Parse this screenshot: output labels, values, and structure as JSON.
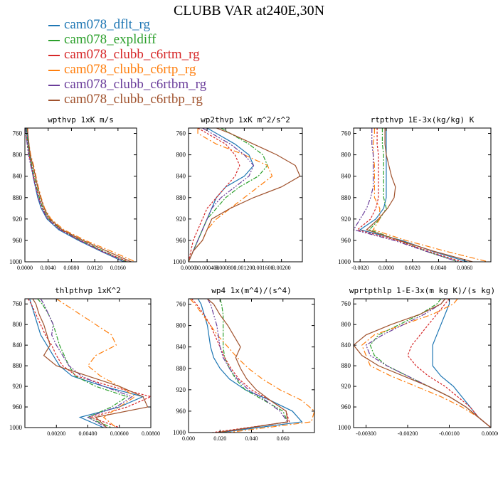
{
  "title": "CLUBB VAR at240E,30N",
  "legend": [
    {
      "label": "cam078_dflt_rg",
      "color": "#1f77b4"
    },
    {
      "label": "cam078_expldiff",
      "color": "#2ca02c"
    },
    {
      "label": "cam078_clubb_c6rtm_rg",
      "color": "#d62728"
    },
    {
      "label": "cam078_clubb_c6rtp_rg",
      "color": "#ff7f0e"
    },
    {
      "label": "cam078_clubb_c6rtbm_rg",
      "color": "#6a3d9a"
    },
    {
      "label": "cam078_clubb_c6rtbp_rg",
      "color": "#a0522d"
    }
  ],
  "chart_data": [
    {
      "type": "line",
      "title": "wpthvp  1xK m/s",
      "xlim": [
        0,
        0.0192
      ],
      "ylim": [
        1000,
        750
      ],
      "yticks": [
        760,
        800,
        840,
        880,
        920,
        960,
        1000
      ],
      "xticks": [
        0.0,
        0.004,
        0.008,
        0.012,
        0.016
      ],
      "xticklabels": [
        "0.0000",
        "0.0040",
        "0.0080",
        "0.0120",
        "0.0160"
      ],
      "y": [
        750,
        760,
        780,
        800,
        820,
        840,
        860,
        880,
        900,
        920,
        940,
        960,
        980,
        1000
      ],
      "series": [
        {
          "name": "cam078_dflt_rg",
          "x": [
            0.0003,
            0.0004,
            0.0006,
            0.0008,
            0.0011,
            0.0014,
            0.0018,
            0.0022,
            0.0028,
            0.0038,
            0.0058,
            0.0092,
            0.013,
            0.017
          ]
        },
        {
          "name": "cam078_expldiff",
          "x": [
            0.0002,
            0.0003,
            0.0005,
            0.0008,
            0.0012,
            0.0016,
            0.002,
            0.0025,
            0.0031,
            0.0041,
            0.0062,
            0.0096,
            0.0135,
            0.0175
          ]
        },
        {
          "name": "cam078_clubb_c6rtm_rg",
          "x": [
            0.0001,
            0.0002,
            0.0004,
            0.0007,
            0.0011,
            0.0015,
            0.0019,
            0.0024,
            0.003,
            0.004,
            0.0061,
            0.0095,
            0.0133,
            0.0178
          ]
        },
        {
          "name": "cam078_clubb_c6rtp_rg",
          "x": [
            0.0005,
            0.0005,
            0.0007,
            0.001,
            0.0015,
            0.0019,
            0.0023,
            0.0028,
            0.0034,
            0.0045,
            0.0067,
            0.0104,
            0.0148,
            0.019
          ]
        },
        {
          "name": "cam078_clubb_c6rtbm_rg",
          "x": [
            0.0001,
            0.0002,
            0.0004,
            0.0006,
            0.001,
            0.0014,
            0.0018,
            0.0023,
            0.0029,
            0.0039,
            0.006,
            0.0094,
            0.0131,
            0.0172
          ]
        },
        {
          "name": "cam078_clubb_c6rtbp_rg",
          "x": [
            0.0004,
            0.0005,
            0.0007,
            0.0009,
            0.0014,
            0.0018,
            0.0022,
            0.0027,
            0.0033,
            0.0043,
            0.0064,
            0.01,
            0.0141,
            0.0183
          ]
        }
      ]
    },
    {
      "type": "line",
      "title": "wp2thvp  1xK m^2/s^2",
      "xlim": [
        0,
        0.00245
      ],
      "ylim": [
        1000,
        750
      ],
      "yticks": [
        760,
        800,
        840,
        880,
        920,
        960,
        1000
      ],
      "xticks": [
        0.0,
        0.0004,
        0.0008,
        0.0012,
        0.0016,
        0.002
      ],
      "xticklabels": [
        "0.0000",
        "00.000400",
        "0.000800",
        "0.001200",
        "0.001600",
        "0.00200"
      ],
      "y": [
        750,
        760,
        780,
        800,
        820,
        840,
        860,
        880,
        900,
        920,
        940,
        960,
        980,
        1000
      ],
      "series": [
        {
          "name": "cam078_dflt_rg",
          "x": [
            0.0004,
            0.0006,
            0.001,
            0.0013,
            0.0014,
            0.0012,
            0.0008,
            0.0006,
            0.0005,
            0.0004,
            0.0003,
            0.0002,
            0.0001,
            0.0
          ]
        },
        {
          "name": "cam078_expldiff",
          "x": [
            0.0007,
            0.0009,
            0.0013,
            0.0016,
            0.0017,
            0.0015,
            0.0011,
            0.0008,
            0.0006,
            0.0004,
            0.0003,
            0.0002,
            0.0001,
            0.0
          ]
        },
        {
          "name": "cam078_clubb_c6rtm_rg",
          "x": [
            0.0002,
            0.0004,
            0.0008,
            0.001,
            0.0011,
            0.001,
            0.0008,
            0.0006,
            0.0004,
            0.0003,
            0.0002,
            0.0001,
            5e-05,
            0.0
          ]
        },
        {
          "name": "cam078_clubb_c6rtp_rg",
          "x": [
            0.0002,
            0.0002,
            0.0006,
            0.0012,
            0.0017,
            0.0018,
            0.0015,
            0.0012,
            0.0009,
            0.0006,
            0.0004,
            0.0003,
            0.0001,
            0.0
          ]
        },
        {
          "name": "cam078_clubb_c6rtbm_rg",
          "x": [
            0.0003,
            0.0005,
            0.0009,
            0.0012,
            0.0014,
            0.0013,
            0.001,
            0.0007,
            0.0005,
            0.0004,
            0.0003,
            0.0002,
            0.0001,
            0.0
          ]
        },
        {
          "name": "cam078_clubb_c6rtbp_rg",
          "x": [
            0.0006,
            0.0009,
            0.0014,
            0.0019,
            0.0023,
            0.0024,
            0.002,
            0.0014,
            0.0009,
            0.0005,
            0.0004,
            0.0003,
            0.0001,
            0.0
          ]
        }
      ]
    },
    {
      "type": "line",
      "title": "rtpthvp  1E-3x(kg/kg) K",
      "xlim": [
        -0.0025,
        0.008
      ],
      "ylim": [
        1000,
        750
      ],
      "yticks": [
        760,
        800,
        840,
        880,
        920,
        960,
        1000
      ],
      "xticks": [
        -0.002,
        0.0,
        0.002,
        0.004,
        0.006
      ],
      "xticklabels": [
        "-0.0020",
        "0.0000",
        "0.0020",
        "0.0040",
        "0.0060"
      ],
      "y": [
        750,
        760,
        780,
        800,
        820,
        840,
        860,
        880,
        900,
        920,
        940,
        960,
        980,
        1000
      ],
      "series": [
        {
          "name": "cam078_dflt_rg",
          "x": [
            0.0,
            0.0,
            0.0,
            0.0,
            0.0,
            0.0,
            0.0,
            0.0,
            -0.0002,
            -0.0008,
            -0.002,
            0.0012,
            0.0035,
            0.0062
          ]
        },
        {
          "name": "cam078_expldiff",
          "x": [
            -0.0003,
            -0.0003,
            -0.0003,
            -0.0002,
            -0.0002,
            -0.0002,
            -0.0002,
            -0.0002,
            0.0,
            -0.0005,
            -0.0013,
            0.001,
            0.003,
            0.0055
          ]
        },
        {
          "name": "cam078_clubb_c6rtm_rg",
          "x": [
            -0.0007,
            -0.0007,
            -0.0007,
            -0.0006,
            -0.0006,
            -0.0006,
            -0.0006,
            -0.0006,
            -0.0008,
            -0.0012,
            -0.0022,
            0.0008,
            0.0032,
            0.0058
          ]
        },
        {
          "name": "cam078_clubb_c6rtp_rg",
          "x": [
            -0.0009,
            -0.0009,
            -0.001,
            -0.001,
            -0.0009,
            -0.0009,
            -0.0009,
            -0.0009,
            -0.0005,
            -0.0005,
            -0.001,
            0.0015,
            0.0045,
            0.0078
          ]
        },
        {
          "name": "cam078_clubb_c6rtbm_rg",
          "x": [
            -0.0011,
            -0.0011,
            -0.0011,
            -0.001,
            -0.001,
            -0.001,
            -0.001,
            -0.0012,
            -0.0015,
            -0.002,
            -0.0025,
            0.0006,
            0.003,
            0.0055
          ]
        },
        {
          "name": "cam078_clubb_c6rtbp_rg",
          "x": [
            -0.0001,
            -0.0001,
            -0.0001,
            0.0,
            0.0002,
            0.0004,
            0.0007,
            0.0006,
            0.0001,
            -0.0006,
            -0.0015,
            0.001,
            0.0036,
            0.0066
          ]
        }
      ]
    },
    {
      "type": "line",
      "title": "thlpthvp  1xK^2",
      "xlim": [
        0,
        0.008
      ],
      "ylim": [
        1000,
        750
      ],
      "yticks": [
        760,
        800,
        840,
        880,
        920,
        960,
        1000
      ],
      "xticks": [
        0.002,
        0.004,
        0.006,
        0.008
      ],
      "xticklabels": [
        "0.00200",
        "0.00400",
        "0.00600",
        "0.00800"
      ],
      "y": [
        750,
        760,
        780,
        800,
        820,
        840,
        860,
        880,
        900,
        920,
        940,
        960,
        980,
        1000
      ],
      "series": [
        {
          "name": "cam078_dflt_rg",
          "x": [
            0.0003,
            0.0004,
            0.0006,
            0.0008,
            0.001,
            0.0014,
            0.0018,
            0.0022,
            0.003,
            0.005,
            0.0075,
            0.006,
            0.0035,
            0.005
          ]
        },
        {
          "name": "cam078_expldiff",
          "x": [
            0.0008,
            0.0011,
            0.0015,
            0.0018,
            0.002,
            0.0022,
            0.0025,
            0.0028,
            0.0032,
            0.0045,
            0.0065,
            0.0055,
            0.004,
            0.0055
          ]
        },
        {
          "name": "cam078_clubb_c6rtm_rg",
          "x": [
            0.0002,
            0.0004,
            0.0007,
            0.001,
            0.0013,
            0.0017,
            0.002,
            0.0024,
            0.0033,
            0.0055,
            0.008,
            0.0065,
            0.0042,
            0.006
          ]
        },
        {
          "name": "cam078_clubb_c6rtp_rg",
          "x": [
            0.002,
            0.0025,
            0.0035,
            0.0045,
            0.0055,
            0.0058,
            0.0045,
            0.004,
            0.0048,
            0.006,
            0.007,
            0.006,
            0.005,
            0.0058
          ]
        },
        {
          "name": "cam078_clubb_c6rtbm_rg",
          "x": [
            0.001,
            0.0012,
            0.0015,
            0.0018,
            0.0017,
            0.002,
            0.0024,
            0.0028,
            0.0036,
            0.005,
            0.0068,
            0.0058,
            0.004,
            0.0052
          ]
        },
        {
          "name": "cam078_clubb_c6rtbp_rg",
          "x": [
            0.0005,
            0.0007,
            0.0009,
            0.0012,
            0.0014,
            0.0016,
            0.0012,
            0.002,
            0.004,
            0.006,
            0.0075,
            0.0078,
            0.0045,
            0.0052
          ]
        }
      ]
    },
    {
      "type": "line",
      "title": "wp4  1x(m^4)/(s^4)",
      "xlim": [
        0,
        0.08
      ],
      "ylim": [
        1000,
        750
      ],
      "yticks": [
        760,
        800,
        840,
        880,
        920,
        960,
        1000
      ],
      "xticks": [
        0.0,
        0.02,
        0.04,
        0.06
      ],
      "xticklabels": [
        "0.000",
        "0.020",
        "0.040",
        "0.060"
      ],
      "y": [
        750,
        760,
        780,
        800,
        820,
        840,
        860,
        880,
        900,
        920,
        940,
        960,
        980,
        1000
      ],
      "series": [
        {
          "name": "cam078_dflt_rg",
          "x": [
            0.006,
            0.008,
            0.01,
            0.012,
            0.013,
            0.014,
            0.016,
            0.02,
            0.026,
            0.036,
            0.052,
            0.066,
            0.072,
            0.02
          ]
        },
        {
          "name": "cam078_expldiff",
          "x": [
            0.02,
            0.021,
            0.022,
            0.022,
            0.022,
            0.022,
            0.023,
            0.026,
            0.03,
            0.036,
            0.048,
            0.06,
            0.063,
            0.02
          ]
        },
        {
          "name": "cam078_clubb_c6rtm_rg",
          "x": [
            0.002,
            0.005,
            0.01,
            0.014,
            0.017,
            0.02,
            0.023,
            0.027,
            0.032,
            0.04,
            0.052,
            0.062,
            0.064,
            0.015
          ]
        },
        {
          "name": "cam078_clubb_c6rtp_rg",
          "x": [
            0.001,
            0.004,
            0.009,
            0.014,
            0.019,
            0.025,
            0.031,
            0.038,
            0.047,
            0.058,
            0.072,
            0.08,
            0.078,
            0.025
          ]
        },
        {
          "name": "cam078_clubb_c6rtbm_rg",
          "x": [
            0.012,
            0.014,
            0.016,
            0.018,
            0.019,
            0.02,
            0.022,
            0.026,
            0.031,
            0.038,
            0.049,
            0.058,
            0.063,
            0.02
          ]
        },
        {
          "name": "cam078_clubb_c6rtbp_rg",
          "x": [
            0.012,
            0.016,
            0.02,
            0.025,
            0.029,
            0.033,
            0.03,
            0.033,
            0.037,
            0.043,
            0.052,
            0.062,
            0.063,
            0.018
          ]
        }
      ]
    },
    {
      "type": "line",
      "title": "wprtpthlp  1-E-3x(m kg K)/(s kg)",
      "xlim": [
        -0.0033,
        0.0
      ],
      "ylim": [
        1000,
        750
      ],
      "yticks": [
        760,
        800,
        840,
        880,
        920,
        960,
        1000
      ],
      "xticks": [
        -0.003,
        -0.002,
        -0.001,
        0.0
      ],
      "xticklabels": [
        "-0.00300",
        "-0.00200",
        "-0.00100",
        "0.00000"
      ],
      "y": [
        750,
        760,
        780,
        800,
        820,
        840,
        860,
        880,
        900,
        920,
        940,
        960,
        980,
        1000
      ],
      "series": [
        {
          "name": "cam078_dflt_rg",
          "x": [
            -0.001,
            -0.001,
            -0.0011,
            -0.0012,
            -0.0013,
            -0.0014,
            -0.0014,
            -0.0014,
            -0.0012,
            -0.0009,
            -0.0007,
            -0.0005,
            -0.0003,
            0.0
          ]
        },
        {
          "name": "cam078_expldiff",
          "x": [
            -0.0012,
            -0.0013,
            -0.0017,
            -0.0022,
            -0.0027,
            -0.0029,
            -0.0028,
            -0.0025,
            -0.002,
            -0.0015,
            -0.001,
            -0.0006,
            -0.0003,
            0.0
          ]
        },
        {
          "name": "cam078_clubb_c6rtm_rg",
          "x": [
            -0.001,
            -0.0011,
            -0.0013,
            -0.0015,
            -0.0017,
            -0.0019,
            -0.002,
            -0.0018,
            -0.0015,
            -0.0011,
            -0.0008,
            -0.0005,
            -0.0003,
            0.0
          ]
        },
        {
          "name": "cam078_clubb_c6rtp_rg",
          "x": [
            -0.0008,
            -0.0009,
            -0.0014,
            -0.0021,
            -0.0028,
            -0.0031,
            -0.003,
            -0.0029,
            -0.0024,
            -0.0018,
            -0.0012,
            -0.0007,
            -0.0003,
            0.0
          ]
        },
        {
          "name": "cam078_clubb_c6rtbm_rg",
          "x": [
            -0.0011,
            -0.0012,
            -0.0016,
            -0.0021,
            -0.0026,
            -0.003,
            -0.0029,
            -0.0025,
            -0.002,
            -0.0015,
            -0.001,
            -0.0006,
            -0.0003,
            0.0
          ]
        },
        {
          "name": "cam078_clubb_c6rtbp_rg",
          "x": [
            -0.0011,
            -0.0012,
            -0.0017,
            -0.0024,
            -0.003,
            -0.0033,
            -0.0031,
            -0.0027,
            -0.0021,
            -0.0015,
            -0.001,
            -0.0006,
            -0.0003,
            0.0
          ]
        }
      ]
    }
  ]
}
